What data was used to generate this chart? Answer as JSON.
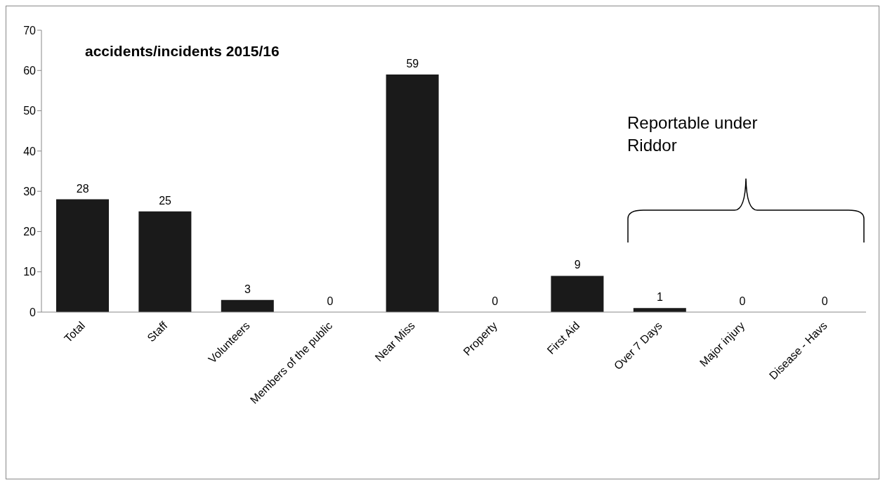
{
  "chart_data": {
    "type": "bar",
    "title": "accidents/incidents 2015/16",
    "categories": [
      "Total",
      "Staff",
      "Volunteers",
      "Members of the public",
      "Near Miss",
      "Property",
      "First Aid",
      "Over 7 Days",
      "Major injury",
      "Disease - Havs"
    ],
    "values": [
      28,
      25,
      3,
      0,
      59,
      0,
      9,
      1,
      0,
      0
    ],
    "color": "#1a1a1a",
    "ylim": [
      0,
      70
    ],
    "yticks": [
      0,
      10,
      20,
      30,
      40,
      50,
      60,
      70
    ],
    "data_labels": true,
    "annotations": [
      "Reportable under Riddor"
    ]
  }
}
